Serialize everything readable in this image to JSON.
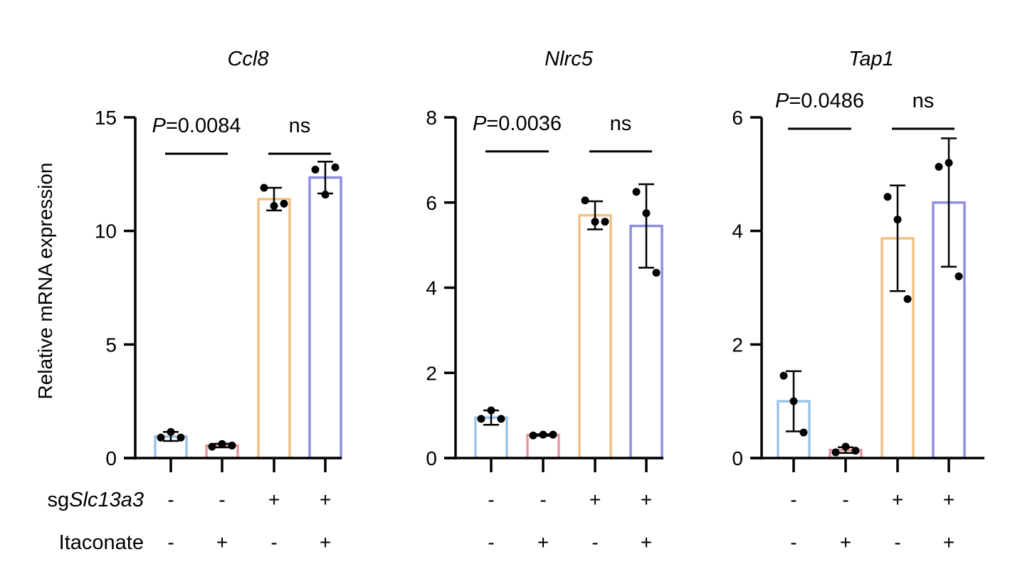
{
  "y_axis_label": "Relative mRNA expression",
  "row_labels": {
    "sg_prefix": "sg",
    "sg_gene": "Slc13a3",
    "treatment": "Itaconate"
  },
  "conditions": [
    {
      "sg": "-",
      "itaconate": "-"
    },
    {
      "sg": "-",
      "itaconate": "+"
    },
    {
      "sg": "+",
      "itaconate": "-"
    },
    {
      "sg": "+",
      "itaconate": "+"
    }
  ],
  "colors": {
    "groups": [
      "#9dc3ea",
      "#eb9a9f",
      "#f2c184",
      "#8e8fe0"
    ],
    "axis": "#000000",
    "points": "#000000"
  },
  "chart_data": [
    {
      "type": "bar",
      "title": "Ccl8",
      "ylabel": "Relative mRNA expression",
      "ylim": [
        0,
        15
      ],
      "yticks": [
        0,
        5,
        10,
        15
      ],
      "ytick_labels": [
        "0",
        "5",
        "10",
        "15"
      ],
      "series": [
        {
          "name": "sgSlc13a3 - / Itaconate -",
          "mean": 0.95,
          "sd": 0.2,
          "points": [
            0.9,
            1.15,
            0.9
          ]
        },
        {
          "name": "sgSlc13a3 - / Itaconate +",
          "mean": 0.55,
          "sd": 0.08,
          "points": [
            0.5,
            0.62,
            0.55
          ]
        },
        {
          "name": "sgSlc13a3 + / Itaconate -",
          "mean": 11.4,
          "sd": 0.5,
          "points": [
            11.9,
            11.1,
            11.2
          ]
        },
        {
          "name": "sgSlc13a3 + / Itaconate +",
          "mean": 12.35,
          "sd": 0.7,
          "points": [
            12.7,
            11.6,
            12.8
          ]
        }
      ],
      "comparisons": [
        {
          "from": 0,
          "to": 1,
          "label_italic": "P",
          "label_rest": "=0.0084",
          "y": 13.4
        },
        {
          "from": 2,
          "to": 3,
          "label_italic": "",
          "label_rest": "ns",
          "y": 13.4
        }
      ]
    },
    {
      "type": "bar",
      "title": "Nlrc5",
      "ylabel": "",
      "ylim": [
        0,
        8
      ],
      "yticks": [
        0,
        2,
        4,
        6,
        8
      ],
      "ytick_labels": [
        "0",
        "2",
        "4",
        "6",
        "8"
      ],
      "series": [
        {
          "name": "sgSlc13a3 - / Itaconate -",
          "mean": 0.95,
          "sd": 0.17,
          "points": [
            0.92,
            1.12,
            0.92
          ]
        },
        {
          "name": "sgSlc13a3 - / Itaconate +",
          "mean": 0.54,
          "sd": 0.02,
          "points": [
            0.53,
            0.55,
            0.55
          ]
        },
        {
          "name": "sgSlc13a3 + / Itaconate -",
          "mean": 5.7,
          "sd": 0.33,
          "points": [
            6.05,
            5.55,
            5.55
          ]
        },
        {
          "name": "sgSlc13a3 + / Itaconate +",
          "mean": 5.45,
          "sd": 0.98,
          "points": [
            6.25,
            5.75,
            4.35
          ]
        }
      ],
      "comparisons": [
        {
          "from": 0,
          "to": 1,
          "label_italic": "P",
          "label_rest": "=0.0036",
          "y": 7.2
        },
        {
          "from": 2,
          "to": 3,
          "label_italic": "",
          "label_rest": "ns",
          "y": 7.2
        }
      ]
    },
    {
      "type": "bar",
      "title": "Tap1",
      "ylabel": "",
      "ylim": [
        0,
        6
      ],
      "yticks": [
        0,
        2,
        4,
        6
      ],
      "ytick_labels": [
        "0",
        "2",
        "4",
        "6"
      ],
      "series": [
        {
          "name": "sgSlc13a3 - / Itaconate -",
          "mean": 1.0,
          "sd": 0.53,
          "points": [
            1.45,
            1.0,
            0.45
          ]
        },
        {
          "name": "sgSlc13a3 - / Itaconate +",
          "mean": 0.14,
          "sd": 0.05,
          "points": [
            0.1,
            0.2,
            0.13
          ]
        },
        {
          "name": "sgSlc13a3 + / Itaconate -",
          "mean": 3.87,
          "sd": 0.93,
          "points": [
            4.6,
            4.2,
            2.8
          ]
        },
        {
          "name": "sgSlc13a3 + / Itaconate +",
          "mean": 4.5,
          "sd": 1.13,
          "points": [
            5.13,
            5.2,
            3.2
          ]
        }
      ],
      "comparisons": [
        {
          "from": 0,
          "to": 1,
          "label_italic": "P",
          "label_rest": "=0.0486",
          "y": 5.8
        },
        {
          "from": 2,
          "to": 3,
          "label_italic": "",
          "label_rest": "ns",
          "y": 5.8
        }
      ]
    }
  ]
}
